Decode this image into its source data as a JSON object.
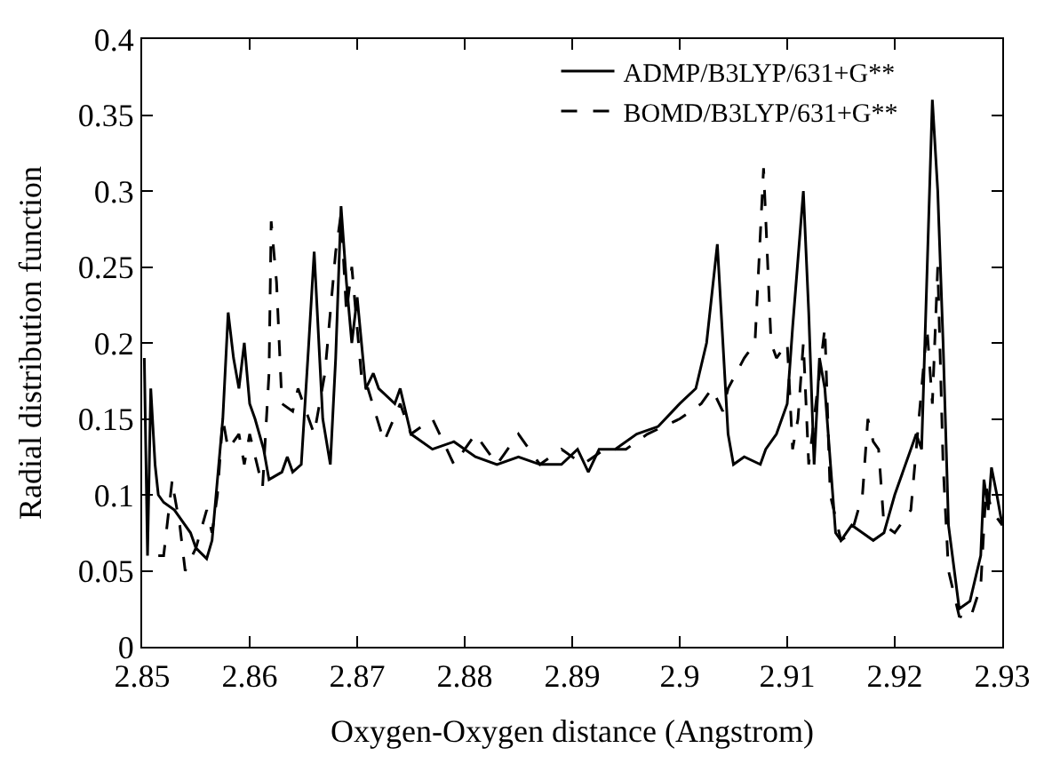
{
  "chart_data": {
    "type": "line",
    "xlabel": "Oxygen-Oxygen distance (Angstrom)",
    "ylabel": "Radial distribution function",
    "xlim": [
      2.85,
      2.93
    ],
    "xticks": [
      2.85,
      2.86,
      2.87,
      2.88,
      2.89,
      2.9,
      2.91,
      2.92,
      2.93
    ],
    "ylim": [
      0,
      0.4
    ],
    "yticks": [
      0,
      0.05,
      0.1,
      0.15,
      0.2,
      0.25,
      0.3,
      0.35,
      0.4
    ],
    "legend": "top right",
    "marker": "none",
    "series": [
      {
        "name": "ADMP/B3LYP/631+G**",
        "color": "#000000",
        "line_style": "solid",
        "x": [
          2.8502,
          2.8505,
          2.8508,
          2.8512,
          2.8515,
          2.852,
          2.853,
          2.8545,
          2.855,
          2.856,
          2.8565,
          2.8575,
          2.858,
          2.8585,
          2.859,
          2.8595,
          2.86,
          2.8605,
          2.8613,
          2.8618,
          2.863,
          2.8635,
          2.864,
          2.8648,
          2.8655,
          2.866,
          2.8668,
          2.8675,
          2.868,
          2.8685,
          2.869,
          2.8695,
          2.87,
          2.8708,
          2.8715,
          2.872,
          2.8735,
          2.874,
          2.875,
          2.877,
          2.879,
          2.881,
          2.883,
          2.885,
          2.887,
          2.889,
          2.8905,
          2.8915,
          2.8925,
          2.894,
          2.896,
          2.898,
          2.9,
          2.9015,
          2.9025,
          2.9035,
          2.9045,
          2.905,
          2.906,
          2.9075,
          2.908,
          2.909,
          2.91,
          2.9105,
          2.9115,
          2.912,
          2.9125,
          2.913,
          2.9135,
          2.9145,
          2.915,
          2.916,
          2.917,
          2.918,
          2.919,
          2.92,
          2.921,
          2.922,
          2.9225,
          2.9235,
          2.924,
          2.9245,
          2.925,
          2.926,
          2.927,
          2.928,
          2.9283,
          2.9287,
          2.929,
          2.9295,
          2.93
        ],
        "values": [
          0.19,
          0.06,
          0.17,
          0.12,
          0.1,
          0.095,
          0.09,
          0.075,
          0.065,
          0.058,
          0.07,
          0.15,
          0.22,
          0.19,
          0.17,
          0.2,
          0.16,
          0.15,
          0.13,
          0.11,
          0.115,
          0.125,
          0.115,
          0.12,
          0.2,
          0.26,
          0.15,
          0.12,
          0.19,
          0.29,
          0.24,
          0.2,
          0.23,
          0.17,
          0.18,
          0.17,
          0.16,
          0.17,
          0.14,
          0.13,
          0.135,
          0.125,
          0.12,
          0.125,
          0.12,
          0.12,
          0.13,
          0.115,
          0.13,
          0.13,
          0.14,
          0.145,
          0.16,
          0.17,
          0.2,
          0.265,
          0.14,
          0.12,
          0.125,
          0.12,
          0.13,
          0.14,
          0.16,
          0.21,
          0.3,
          0.22,
          0.12,
          0.19,
          0.17,
          0.075,
          0.07,
          0.08,
          0.075,
          0.07,
          0.075,
          0.1,
          0.12,
          0.14,
          0.13,
          0.36,
          0.3,
          0.2,
          0.08,
          0.025,
          0.03,
          0.06,
          0.11,
          0.09,
          0.118,
          0.1,
          0.08
        ]
      },
      {
        "name": "BOMD/B3LYP/631+G**",
        "color": "#000000",
        "line_style": "dashed",
        "x": [
          2.8515,
          2.852,
          2.8528,
          2.853,
          2.8535,
          2.854,
          2.855,
          2.856,
          2.8565,
          2.857,
          2.8575,
          2.858,
          2.859,
          2.8595,
          2.86,
          2.8612,
          2.8618,
          2.862,
          2.8625,
          2.863,
          2.864,
          2.8645,
          2.865,
          2.866,
          2.867,
          2.868,
          2.8685,
          2.869,
          2.8695,
          2.8705,
          2.871,
          2.8725,
          2.874,
          2.875,
          2.877,
          2.879,
          2.881,
          2.883,
          2.885,
          2.887,
          2.889,
          2.891,
          2.893,
          2.895,
          2.897,
          2.9,
          2.902,
          2.903,
          2.904,
          2.9045,
          2.906,
          2.907,
          2.9078,
          2.9085,
          2.909,
          2.91,
          2.9105,
          2.911,
          2.9115,
          2.912,
          2.9125,
          2.9135,
          2.914,
          2.915,
          2.916,
          2.917,
          2.9175,
          2.918,
          2.9185,
          2.919,
          2.92,
          2.9215,
          2.922,
          2.923,
          2.9235,
          2.924,
          2.9245,
          2.925,
          2.926,
          2.927,
          2.928,
          2.9285,
          2.929,
          2.93
        ],
        "values": [
          0.06,
          0.06,
          0.11,
          0.1,
          0.08,
          0.05,
          0.065,
          0.09,
          0.075,
          0.1,
          0.15,
          0.13,
          0.14,
          0.12,
          0.14,
          0.105,
          0.18,
          0.28,
          0.24,
          0.16,
          0.155,
          0.17,
          0.16,
          0.14,
          0.18,
          0.26,
          0.285,
          0.22,
          0.25,
          0.17,
          0.17,
          0.135,
          0.16,
          0.14,
          0.15,
          0.12,
          0.14,
          0.12,
          0.14,
          0.12,
          0.13,
          0.12,
          0.13,
          0.13,
          0.14,
          0.15,
          0.16,
          0.17,
          0.155,
          0.17,
          0.19,
          0.2,
          0.315,
          0.2,
          0.19,
          0.2,
          0.13,
          0.15,
          0.2,
          0.12,
          0.15,
          0.21,
          0.1,
          0.07,
          0.075,
          0.1,
          0.15,
          0.135,
          0.13,
          0.08,
          0.075,
          0.09,
          0.13,
          0.21,
          0.16,
          0.25,
          0.12,
          0.05,
          0.02,
          0.018,
          0.04,
          0.105,
          0.09,
          0.08
        ]
      }
    ]
  }
}
